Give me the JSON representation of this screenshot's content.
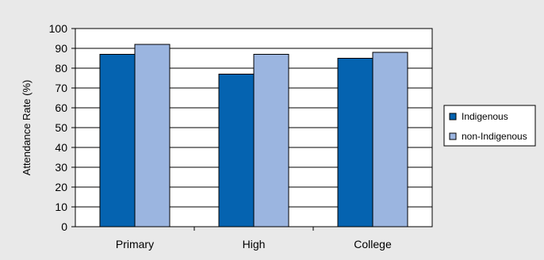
{
  "chart_data": {
    "type": "bar",
    "title": "",
    "xlabel": "",
    "ylabel": "Attendance Rate (%)",
    "categories": [
      "Primary",
      "High",
      "College"
    ],
    "ylim": [
      0,
      100
    ],
    "yticks": [
      0,
      10,
      20,
      30,
      40,
      50,
      60,
      70,
      80,
      90,
      100
    ],
    "grid": true,
    "legend_position": "right",
    "series": [
      {
        "name": "Indigenous",
        "values": [
          87,
          77,
          85
        ],
        "color": "#0563b0"
      },
      {
        "name": "non-Indigenous",
        "values": [
          92,
          87,
          88
        ],
        "color": "#9bb5e0"
      }
    ],
    "colors": {
      "background": "#e9e9e9",
      "plot_area": "#ffffff",
      "grid": "#000000",
      "border": "#000000"
    }
  }
}
